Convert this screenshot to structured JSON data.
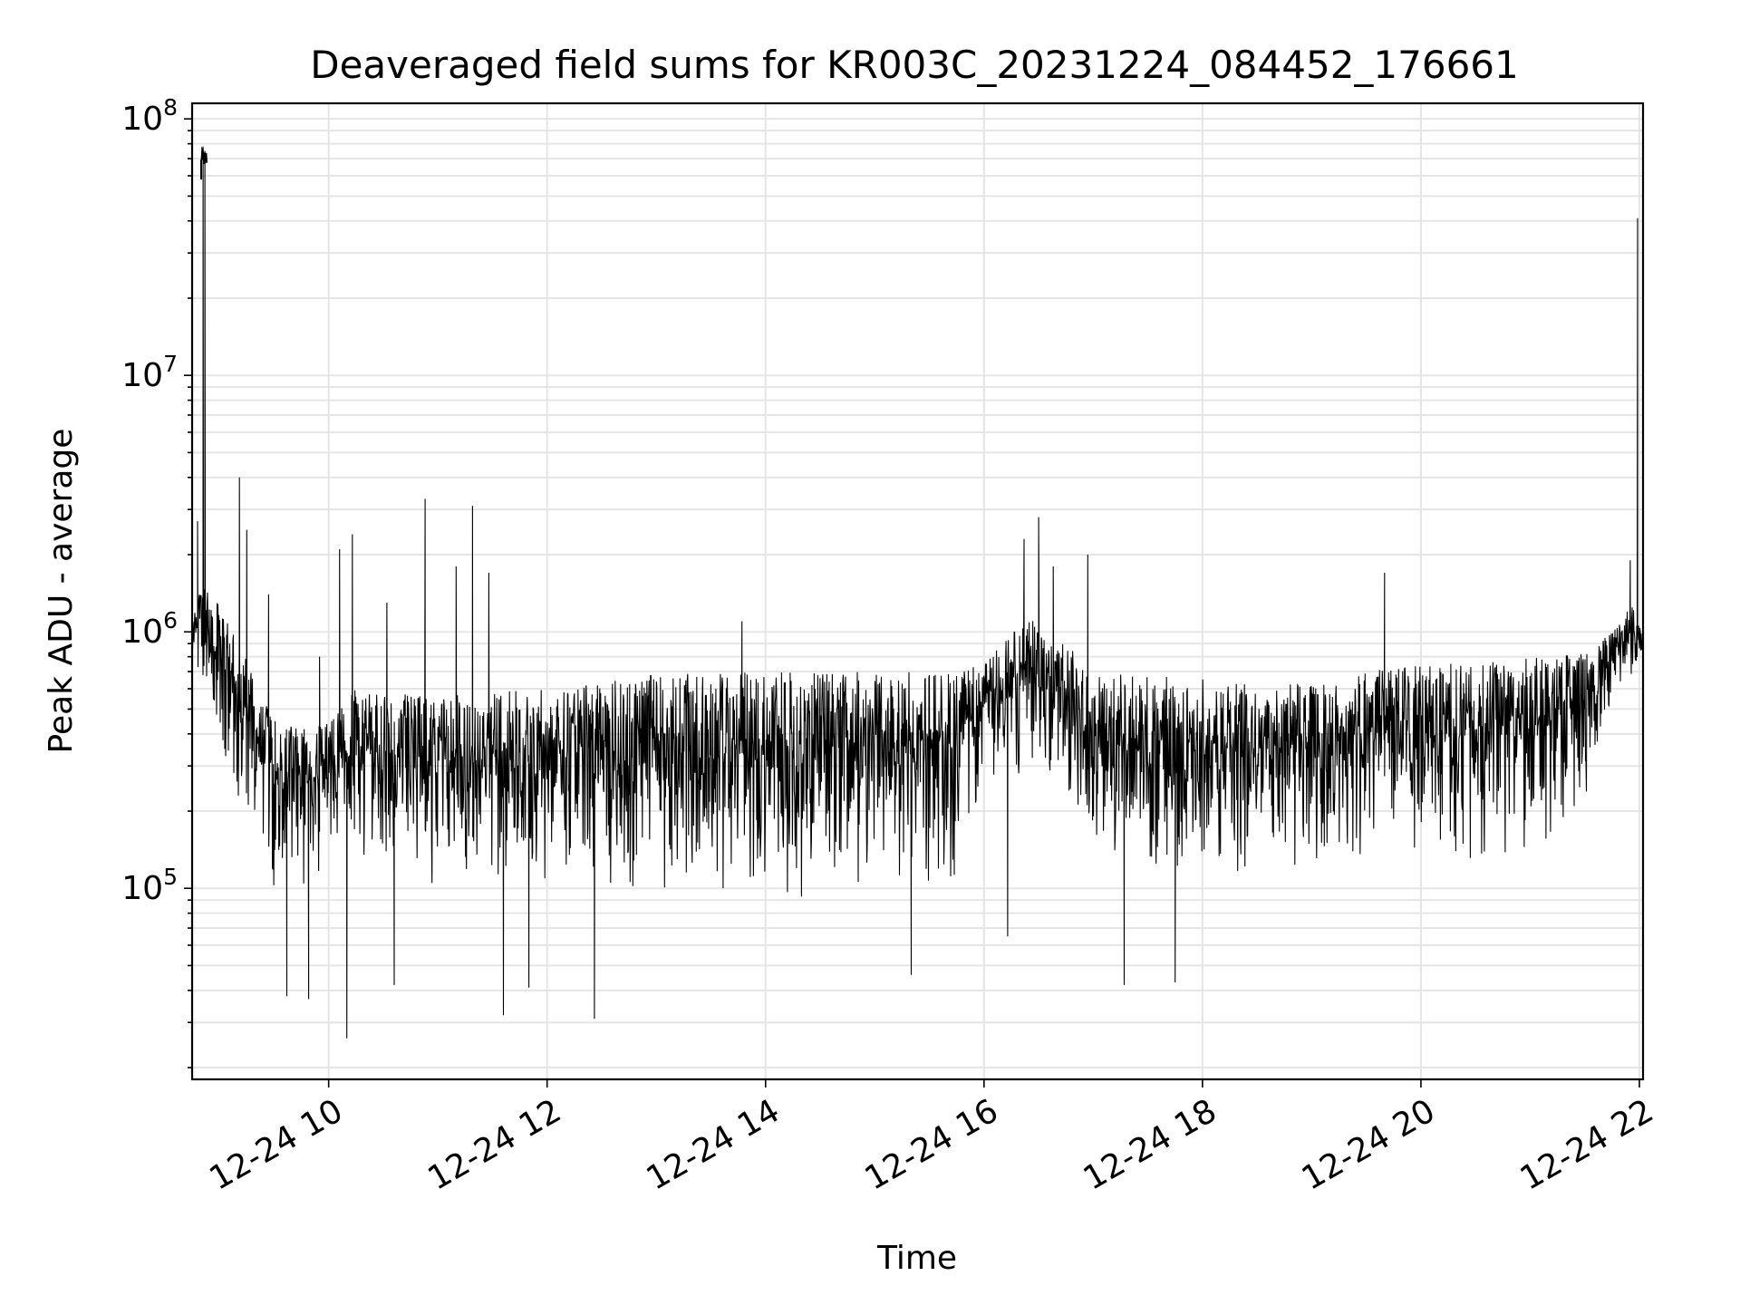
{
  "chart_data": {
    "type": "line",
    "title": "Deaveraged field sums for KR003C_20231224_084452_176661",
    "xlabel": "Time",
    "ylabel": "Peak ADU - average",
    "yscale": "log",
    "grid": true,
    "xlim": [
      "2023-12-24 08:45",
      "2023-12-24 22:02"
    ],
    "ylim": [
      18000,
      115000000
    ],
    "x_ticks": [
      {
        "t": "2023-12-24 10:00",
        "label": "12-24 10"
      },
      {
        "t": "2023-12-24 12:00",
        "label": "12-24 12"
      },
      {
        "t": "2023-12-24 14:00",
        "label": "12-24 14"
      },
      {
        "t": "2023-12-24 16:00",
        "label": "12-24 16"
      },
      {
        "t": "2023-12-24 18:00",
        "label": "12-24 18"
      },
      {
        "t": "2023-12-24 20:00",
        "label": "12-24 20"
      },
      {
        "t": "2023-12-24 22:00",
        "label": "12-24 22"
      }
    ],
    "y_ticks": [
      {
        "value": 100000,
        "base": "10",
        "exp": "5"
      },
      {
        "value": 1000000,
        "base": "10",
        "exp": "6"
      },
      {
        "value": 10000000,
        "base": "10",
        "exp": "7"
      },
      {
        "value": 100000000,
        "base": "10",
        "exp": "8"
      }
    ],
    "line_color": "#000000",
    "grid_color": "#e5e5e5",
    "envelope": {
      "x": [
        "2023-12-24 08:45",
        "2023-12-24 08:47",
        "2023-12-24 08:51",
        "2023-12-24 09:00",
        "2023-12-24 09:15",
        "2023-12-24 09:30",
        "2023-12-24 09:50",
        "2023-12-24 10:06",
        "2023-12-24 10:15",
        "2023-12-24 11:00",
        "2023-12-24 12:00",
        "2023-12-24 13:00",
        "2023-12-24 14:00",
        "2023-12-24 15:00",
        "2023-12-24 15:45",
        "2023-12-24 16:00",
        "2023-12-24 16:25",
        "2023-12-24 16:45",
        "2023-12-24 17:00",
        "2023-12-24 17:30",
        "2023-12-24 18:00",
        "2023-12-24 18:30",
        "2023-12-24 19:00",
        "2023-12-24 19:30",
        "2023-12-24 20:00",
        "2023-12-24 20:30",
        "2023-12-24 21:00",
        "2023-12-24 21:30",
        "2023-12-24 21:45",
        "2023-12-24 21:56",
        "2023-12-24 22:02"
      ],
      "high": [
        1300000,
        1400000,
        1500000,
        1300000,
        800000,
        450000,
        420000,
        500000,
        600000,
        560000,
        600000,
        680000,
        700000,
        700000,
        700000,
        750000,
        1200000,
        900000,
        700000,
        680000,
        660000,
        640000,
        620000,
        700000,
        740000,
        760000,
        800000,
        820000,
        1000000,
        1300000,
        950000
      ],
      "low": [
        700000,
        650000,
        550000,
        350000,
        150000,
        90000,
        85000,
        150000,
        130000,
        100000,
        100000,
        95000,
        90000,
        90000,
        100000,
        250000,
        250000,
        180000,
        120000,
        100000,
        100000,
        100000,
        110000,
        130000,
        130000,
        120000,
        120000,
        200000,
        550000,
        650000,
        650000
      ]
    },
    "spikes": [
      {
        "t": "2023-12-24 08:48",
        "y": 2700000
      },
      {
        "t": "2023-12-24 08:51",
        "y": 78000000
      },
      {
        "t": "2023-12-24 08:52",
        "y": 75000000
      },
      {
        "t": "2023-12-24 09:11",
        "y": 4000000
      },
      {
        "t": "2023-12-24 09:15",
        "y": 2500000
      },
      {
        "t": "2023-12-24 09:27",
        "y": 1400000
      },
      {
        "t": "2023-12-24 09:55",
        "y": 800000
      },
      {
        "t": "2023-12-24 10:06",
        "y": 2100000
      },
      {
        "t": "2023-12-24 10:13",
        "y": 2400000
      },
      {
        "t": "2023-12-24 10:32",
        "y": 1300000
      },
      {
        "t": "2023-12-24 10:53",
        "y": 3300000
      },
      {
        "t": "2023-12-24 11:10",
        "y": 1800000
      },
      {
        "t": "2023-12-24 11:19",
        "y": 3100000
      },
      {
        "t": "2023-12-24 11:28",
        "y": 1700000
      },
      {
        "t": "2023-12-24 13:47",
        "y": 1100000
      },
      {
        "t": "2023-12-24 16:22",
        "y": 2300000
      },
      {
        "t": "2023-12-24 16:30",
        "y": 2800000
      },
      {
        "t": "2023-12-24 16:38",
        "y": 1800000
      },
      {
        "t": "2023-12-24 16:57",
        "y": 2000000
      },
      {
        "t": "2023-12-24 19:40",
        "y": 1700000
      },
      {
        "t": "2023-12-24 21:55",
        "y": 1900000
      },
      {
        "t": "2023-12-24 21:59",
        "y": 41000000
      },
      {
        "t": "2023-12-24 10:10",
        "y": 26000
      },
      {
        "t": "2023-12-24 09:37",
        "y": 38000
      },
      {
        "t": "2023-12-24 09:49",
        "y": 37000
      },
      {
        "t": "2023-12-24 11:36",
        "y": 32000
      },
      {
        "t": "2023-12-24 12:26",
        "y": 31000
      },
      {
        "t": "2023-12-24 10:36",
        "y": 42000
      },
      {
        "t": "2023-12-24 11:50",
        "y": 41000
      },
      {
        "t": "2023-12-24 15:20",
        "y": 46000
      },
      {
        "t": "2023-12-24 16:13",
        "y": 65000
      },
      {
        "t": "2023-12-24 17:17",
        "y": 42000
      },
      {
        "t": "2023-12-24 17:45",
        "y": 43000
      }
    ]
  }
}
